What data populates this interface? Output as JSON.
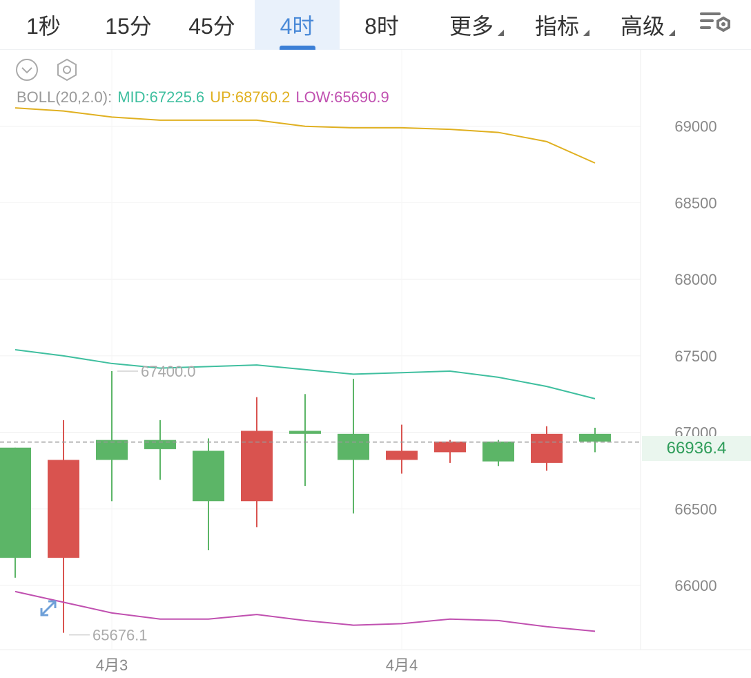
{
  "tabs": [
    {
      "label": "1秒",
      "active": false,
      "dropdown": false
    },
    {
      "label": "15分",
      "active": false,
      "dropdown": false
    },
    {
      "label": "45分",
      "active": false,
      "dropdown": false
    },
    {
      "label": "4时",
      "active": true,
      "dropdown": false
    },
    {
      "label": "8时",
      "active": false,
      "dropdown": false
    },
    {
      "label": "更多",
      "active": false,
      "dropdown": true
    },
    {
      "label": "指标",
      "active": false,
      "dropdown": true
    },
    {
      "label": "高级",
      "active": false,
      "dropdown": true
    }
  ],
  "icons": {
    "settings": "chart-settings-icon",
    "collapse": "chevron-down-circle-icon",
    "indicator_settings": "hexagon-settings-icon",
    "expand": "expand-arrows-icon"
  },
  "legend": {
    "name": "BOLL(20,2.0):",
    "mid": "MID:67225.6",
    "up": "UP:68760.2",
    "low": "LOW:65690.9"
  },
  "current_price": "66936.4",
  "colors": {
    "up_candle": "#d9534f",
    "down_candle": "#5cb567",
    "boll_up": "#e0b020",
    "boll_mid": "#3fbf9f",
    "boll_low": "#c050b0",
    "active_tab": "#4a8ad8"
  },
  "chart_data": {
    "type": "candlestick",
    "ylim": [
      65580,
      69500
    ],
    "y_ticks": [
      "69000",
      "68500",
      "68000",
      "67500",
      "67000",
      "66500",
      "66000"
    ],
    "x_labels": [
      "4月3",
      "4月4"
    ],
    "x_label_index": [
      2,
      8
    ],
    "candles": [
      {
        "open": 66180,
        "close": 66900,
        "high": 66900,
        "low": 66050
      },
      {
        "open": 66820,
        "close": 66180,
        "high": 67080,
        "low": 65690
      },
      {
        "open": 66820,
        "close": 66950,
        "high": 67400,
        "low": 66550
      },
      {
        "open": 66890,
        "close": 66950,
        "high": 67080,
        "low": 66690
      },
      {
        "open": 66550,
        "close": 66880,
        "high": 66960,
        "low": 66230
      },
      {
        "open": 67010,
        "close": 66550,
        "high": 67230,
        "low": 66380
      },
      {
        "open": 66990,
        "close": 67010,
        "high": 67250,
        "low": 66650
      },
      {
        "open": 66820,
        "close": 66990,
        "high": 67350,
        "low": 66470
      },
      {
        "open": 66880,
        "close": 66820,
        "high": 67050,
        "low": 66730
      },
      {
        "open": 66940,
        "close": 66870,
        "high": 66950,
        "low": 66800
      },
      {
        "open": 66810,
        "close": 66940,
        "high": 66950,
        "low": 66780
      },
      {
        "open": 66990,
        "close": 66800,
        "high": 67040,
        "low": 66750
      },
      {
        "open": 66940,
        "close": 66990,
        "high": 67030,
        "low": 66870
      }
    ],
    "boll": {
      "up": [
        69120,
        69100,
        69060,
        69040,
        69040,
        69040,
        69000,
        68990,
        68990,
        68980,
        68960,
        68900,
        68760
      ],
      "mid": [
        67540,
        67500,
        67450,
        67420,
        67430,
        67440,
        67410,
        67380,
        67390,
        67400,
        67360,
        67300,
        67220
      ],
      "low": [
        65960,
        65890,
        65820,
        65780,
        65780,
        65810,
        65770,
        65740,
        65750,
        65780,
        65770,
        65730,
        65700
      ]
    },
    "annotations": [
      {
        "label": "67400.0",
        "index": 2,
        "value": 67400
      },
      {
        "label": "65676.1",
        "index": 1,
        "value": 65676.1
      }
    ],
    "current_price": 66936.4
  }
}
